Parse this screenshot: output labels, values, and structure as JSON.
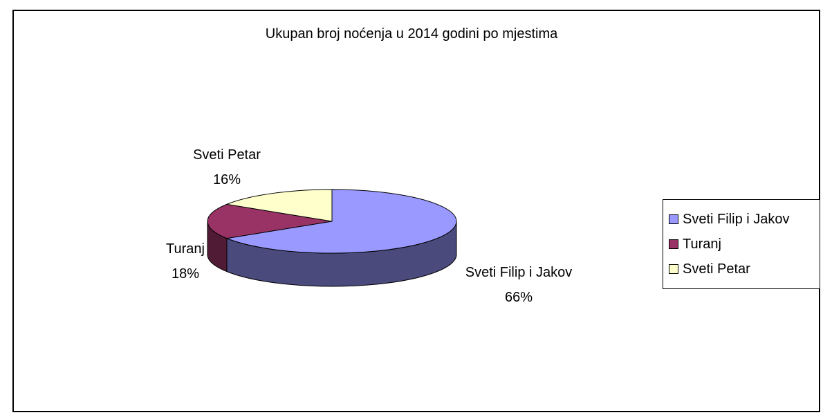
{
  "chart_data": {
    "type": "pie",
    "title": "Ukupan broj noćenja u 2014 godini po mjestima",
    "categories": [
      "Sveti Filip i Jakov",
      "Turanj",
      "Sveti Petar"
    ],
    "values": [
      66,
      18,
      16
    ],
    "value_labels": [
      "66%",
      "18%",
      "16%"
    ],
    "colors": [
      "#9999FF",
      "#993366",
      "#FFFFCC"
    ],
    "side_colors": [
      "#4A4A7D",
      "#4F1B35",
      "#8A8A6F"
    ],
    "legend_position": "right",
    "three_d": true
  }
}
